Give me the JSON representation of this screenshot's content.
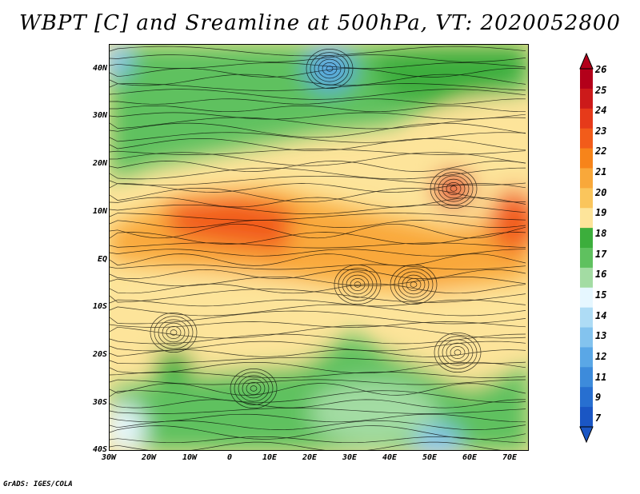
{
  "title": "WBPT [C] and Sreamline at 500hPa, VT: 2020052800",
  "footer": "GrADS: IGES/COLA",
  "latitude_labels": [
    "40N",
    "30N",
    "20N",
    "10N",
    "EQ",
    "10S",
    "20S",
    "30S",
    "40S"
  ],
  "longitude_labels": [
    "30W",
    "20W",
    "10W",
    "0",
    "10E",
    "20E",
    "30E",
    "40E",
    "50E",
    "60E",
    "70E"
  ],
  "colorbar": {
    "labels": [
      "26",
      "25",
      "24",
      "23",
      "22",
      "21",
      "20",
      "19",
      "18",
      "17",
      "16",
      "15",
      "14",
      "13",
      "12",
      "11",
      "9",
      "7"
    ],
    "colors": [
      "#b3001a",
      "#cc1a1a",
      "#e63a1a",
      "#f25c1a",
      "#f7841a",
      "#f9a83a",
      "#fac55c",
      "#fde49a",
      "#3cae3c",
      "#5fc15f",
      "#a3dca3",
      "#e6f7ff",
      "#aedcf5",
      "#83c3ee",
      "#5aa7e6",
      "#3d8bdb",
      "#276fd0",
      "#1a56c4"
    ]
  }
}
